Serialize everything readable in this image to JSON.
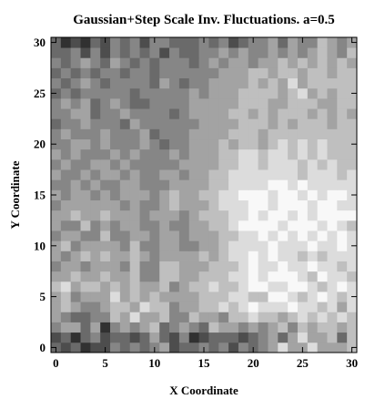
{
  "chart_data": {
    "type": "heatmap",
    "title": "Gaussian+Step Scale Inv. Fluctuations. a=0.5",
    "xlabel": "X Coordinate",
    "ylabel": "Y Coordinate",
    "xlim": [
      -0.5,
      30.5
    ],
    "ylim": [
      -0.5,
      30.5
    ],
    "x_ticks": [
      0,
      5,
      10,
      15,
      20,
      25,
      30
    ],
    "y_ticks": [
      0,
      5,
      10,
      15,
      20,
      25,
      30
    ],
    "grid": false,
    "colormap": "grayscale (dark = low, light = high)",
    "value_range": [
      0,
      1
    ],
    "rows_bottom_to_top": [
      "3231224343452334342434575575556",
      "2313423323532412333234535755636",
      "4553514545634543655454564656656",
      "5433446575564465546676656767676",
      "5654456657664556676787778776757",
      "5645557565655556667766887678767",
      "6756656565564566766788778876787",
      "5565565564466556667787888768776",
      "4554555464466555666787787787767",
      "5456565565455556567787877676777",
      "5645555464455445567777877787787",
      "4554464455455455566778787878787",
      "5446454554454455667888878887876",
      "5565565554555456667787887878888",
      "4555555454456555677788788878877",
      "5455454555456556677888788787887",
      "4454544554445555667777887877777",
      "5445455454455455667777777677767",
      "4544554544444555566776777676766",
      "5454445454445455566776776767666",
      "4455454445434455565665676767666",
      "4544454445344455556665666666666",
      "3445444354444445555666565666566",
      "4455344544443455556656566656565",
      "4545345433444455555666556665566",
      "3434444434444454555666656756566",
      "4345434444354344555565657566666",
      "3434344344344444455566566566566",
      "4345435434344434545545565656565",
      "3342424343424334454544545456546",
      "3121324342443334342344535446545"
    ]
  }
}
